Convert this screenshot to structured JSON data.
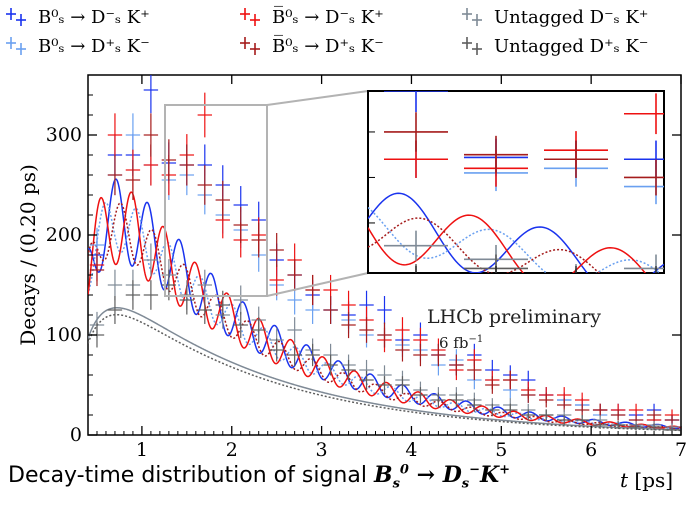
{
  "chart_data": {
    "type": "scatter",
    "title": "",
    "xlabel": "t [ps]",
    "ylabel": "Decays / (0.20 ps)",
    "xlim": [
      0.4,
      7.0
    ],
    "ylim": [
      0,
      360
    ],
    "x_ticks": [
      "1",
      "2",
      "3",
      "4",
      "5",
      "6",
      "7"
    ],
    "y_ticks": [
      "0",
      "100",
      "200",
      "300"
    ],
    "legend_position": "top",
    "grid": false,
    "annotations": [
      "LHCb preliminary",
      "6 fb⁻¹"
    ],
    "caption": "Decay-time distribution of signal B⁰ₛ → D⁻ₛK⁺",
    "inset": {
      "xlim": [
        0.98,
        1.72
      ],
      "ylim": [
        145,
        345
      ]
    },
    "series": [
      {
        "name": "B⁰ₛ → D⁻ₛ K⁺",
        "color": "#1a33ee",
        "x": [
          0.5,
          0.7,
          0.9,
          1.1,
          1.3,
          1.5,
          1.7,
          1.9,
          2.1,
          2.3,
          2.5,
          2.7,
          2.9,
          3.1,
          3.3,
          3.5,
          3.7,
          3.9,
          4.1,
          4.3,
          4.5,
          4.7,
          4.9,
          5.1,
          5.3,
          5.5,
          5.7,
          5.9,
          6.1,
          6.3,
          6.5,
          6.7,
          6.9
        ],
        "y": [
          180,
          280,
          280,
          345,
          272,
          270,
          270,
          250,
          230,
          215,
          175,
          160,
          140,
          125,
          120,
          130,
          125,
          95,
          100,
          80,
          70,
          80,
          65,
          60,
          55,
          40,
          35,
          30,
          25,
          25,
          20,
          25,
          15
        ]
      },
      {
        "name": "B⁰ₛ → D⁺ₛ K⁻",
        "color": "#6aa0f0",
        "x": [
          0.5,
          0.7,
          0.9,
          1.1,
          1.3,
          1.5,
          1.7,
          1.9,
          2.1,
          2.3,
          2.5,
          2.7,
          2.9,
          3.1,
          3.3,
          3.5,
          3.7,
          3.9,
          4.1,
          4.3,
          4.5,
          4.7,
          4.9,
          5.1,
          5.3,
          5.5,
          5.7,
          5.9,
          6.1,
          6.3,
          6.5,
          6.7,
          6.9
        ],
        "y": [
          190,
          260,
          300,
          270,
          255,
          260,
          240,
          220,
          205,
          180,
          150,
          135,
          125,
          125,
          115,
          100,
          100,
          90,
          85,
          70,
          75,
          55,
          55,
          45,
          40,
          40,
          35,
          30,
          20,
          20,
          15,
          15,
          15
        ]
      },
      {
        "name": "B̅⁰ₛ → D⁻ₛ K⁺",
        "color": "#ee1111",
        "x": [
          0.5,
          0.7,
          0.9,
          1.1,
          1.3,
          1.5,
          1.7,
          1.9,
          2.1,
          2.3,
          2.5,
          2.7,
          2.9,
          3.1,
          3.3,
          3.5,
          3.7,
          3.9,
          4.1,
          4.3,
          4.5,
          4.7,
          4.9,
          5.1,
          5.3,
          5.5,
          5.7,
          5.9,
          6.1,
          6.3,
          6.5,
          6.7,
          6.9
        ],
        "y": [
          170,
          300,
          265,
          270,
          260,
          280,
          320,
          215,
          195,
          200,
          155,
          175,
          145,
          145,
          130,
          115,
          95,
          105,
          95,
          85,
          65,
          75,
          55,
          55,
          45,
          40,
          40,
          35,
          25,
          25,
          25,
          15,
          20
        ]
      },
      {
        "name": "B̅⁰ₛ → D⁺ₛ K⁻",
        "color": "#a51c1c",
        "x": [
          0.5,
          0.7,
          0.9,
          1.1,
          1.3,
          1.5,
          1.7,
          1.9,
          2.1,
          2.3,
          2.5,
          2.7,
          2.9,
          3.1,
          3.3,
          3.5,
          3.7,
          3.9,
          4.1,
          4.3,
          4.5,
          4.7,
          4.9,
          5.1,
          5.3,
          5.5,
          5.7,
          5.9,
          6.1,
          6.3,
          6.5,
          6.7,
          6.9
        ],
        "y": [
          165,
          260,
          255,
          300,
          275,
          270,
          250,
          235,
          210,
          195,
          185,
          160,
          145,
          125,
          110,
          105,
          100,
          85,
          80,
          80,
          70,
          65,
          50,
          55,
          40,
          35,
          30,
          25,
          25,
          20,
          15,
          20,
          15
        ]
      },
      {
        "name": "Untagged D⁻ₛ K⁺",
        "color": "#7f8a96",
        "x": [
          0.5,
          0.7,
          0.9,
          1.1,
          1.3,
          1.5,
          1.7,
          1.9,
          2.1,
          2.3,
          2.5,
          2.7,
          2.9,
          3.1,
          3.3,
          3.5,
          3.7,
          3.9,
          4.1,
          4.3,
          4.5,
          4.7,
          4.9,
          5.1,
          5.3,
          5.5,
          5.7,
          5.9,
          6.1,
          6.3,
          6.5,
          6.7,
          6.9
        ],
        "y": [
          110,
          150,
          150,
          175,
          160,
          140,
          150,
          120,
          135,
          115,
          95,
          105,
          85,
          80,
          70,
          65,
          60,
          55,
          45,
          40,
          40,
          35,
          30,
          30,
          25,
          20,
          20,
          15,
          15,
          10,
          10,
          10,
          8
        ]
      },
      {
        "name": "Untagged D⁺ₛ K⁻",
        "color": "#5e5e5e",
        "x": [
          0.5,
          0.7,
          0.9,
          1.1,
          1.3,
          1.5,
          1.7,
          1.9,
          2.1,
          2.3,
          2.5,
          2.7,
          2.9,
          3.1,
          3.3,
          3.5,
          3.7,
          3.9,
          4.1,
          4.3,
          4.5,
          4.7,
          4.9,
          5.1,
          5.3,
          5.5,
          5.7,
          5.9,
          6.1,
          6.3,
          6.5,
          6.7,
          6.9
        ],
        "y": [
          100,
          125,
          140,
          140,
          150,
          135,
          125,
          130,
          110,
          105,
          85,
          80,
          80,
          70,
          65,
          55,
          50,
          50,
          40,
          35,
          35,
          30,
          25,
          25,
          20,
          20,
          15,
          15,
          10,
          10,
          8,
          8,
          5
        ]
      }
    ]
  }
}
